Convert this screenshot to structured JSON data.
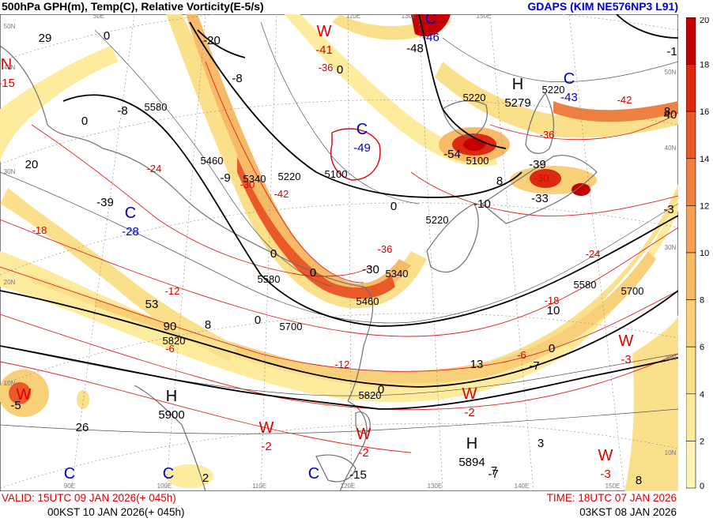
{
  "header": {
    "title": "500hPa GPH(m), Temp(C), Relative Vorticity(E-5/s)",
    "model": "GDAPS (KIM NE576NP3 L91)"
  },
  "footer": {
    "valid_utc": "VALID: 15UTC 09 JAN 2026(+ 045h)",
    "valid_kst": "00KST 10 JAN 2026(+ 045h)",
    "time_utc": "TIME: 18UTC 07 JAN 2026",
    "time_kst": "03KST 08 JAN 2026"
  },
  "colorbar": {
    "ticks": [
      "20",
      "18",
      "16",
      "14",
      "12",
      "10",
      "8",
      "6",
      "4",
      "2",
      "0"
    ],
    "colors": [
      "#c40000",
      "#dc2a10",
      "#ea5a28",
      "#f08040",
      "#f5a055",
      "#f7bb68",
      "#f9d07a",
      "#fbe08c",
      "#fdec9e",
      "#fff6b8"
    ]
  },
  "pressure_centers": [
    {
      "kind": "H",
      "value": "5279",
      "color": "#000000"
    },
    {
      "kind": "H",
      "value": "5900",
      "color": "#000000"
    },
    {
      "kind": "H",
      "value": "5894",
      "color": "#000000"
    },
    {
      "kind": "C",
      "value": "-49",
      "color": "#0000cc"
    },
    {
      "kind": "C",
      "value": "-28",
      "color": "#0000cc"
    },
    {
      "kind": "C",
      "value": "-43",
      "color": "#0000cc"
    },
    {
      "kind": "C",
      "value": "-46",
      "color": "#0000cc"
    },
    {
      "kind": "C",
      "value": "",
      "color": "#0000cc"
    },
    {
      "kind": "C",
      "value": "",
      "color": "#0000cc"
    },
    {
      "kind": "C",
      "value": "",
      "color": "#0000cc"
    },
    {
      "kind": "W",
      "value": "-41",
      "color": "#dd0000"
    },
    {
      "kind": "W",
      "value": "-2",
      "color": "#dd0000"
    },
    {
      "kind": "W",
      "value": "-2",
      "color": "#dd0000"
    },
    {
      "kind": "W",
      "value": "-2",
      "color": "#dd0000"
    },
    {
      "kind": "W",
      "value": "-3",
      "color": "#dd0000"
    },
    {
      "kind": "W",
      "value": "-3",
      "color": "#dd0000"
    },
    {
      "kind": "N",
      "value": "-15",
      "color": "#dd0000"
    },
    {
      "kind": "W",
      "value": "",
      "color": "#dd0000"
    }
  ],
  "gph_labels": [
    "5580",
    "5460",
    "5340",
    "5220",
    "5100",
    "5220",
    "5580",
    "5700",
    "5820",
    "5460",
    "5340",
    "5100",
    "5220",
    "5580",
    "5700",
    "5820",
    "5220"
  ],
  "temp_labels": [
    "-24",
    "-30",
    "-36",
    "-42",
    "-18",
    "-12",
    "-6",
    "-36",
    "-24",
    "-18",
    "-12",
    "-6",
    "-30",
    "-36",
    "-42"
  ],
  "vort_labels": [
    "29",
    "0",
    "-8",
    "20",
    "-39",
    "0",
    "-9",
    "-20",
    "0",
    "-8",
    "0",
    "0",
    "53",
    "8",
    "90",
    "0",
    "-30",
    "0",
    "10",
    "13",
    "-7",
    "0",
    "8",
    "-39",
    "-54",
    "26",
    "2",
    "-15",
    "3",
    "-7",
    "-3",
    "40",
    "-1",
    "0",
    "-10",
    "-48",
    "-33",
    "-5",
    "7",
    "8",
    "8"
  ],
  "lat_labels": [
    "10N",
    "20N",
    "30N",
    "40N",
    "50N",
    "20N",
    "30N",
    "40N",
    "50N",
    "10N"
  ],
  "lon_labels": [
    "90E",
    "100E",
    "110E",
    "120E",
    "130E",
    "140E",
    "150E",
    "50E",
    "110E",
    "130E",
    "150E"
  ]
}
